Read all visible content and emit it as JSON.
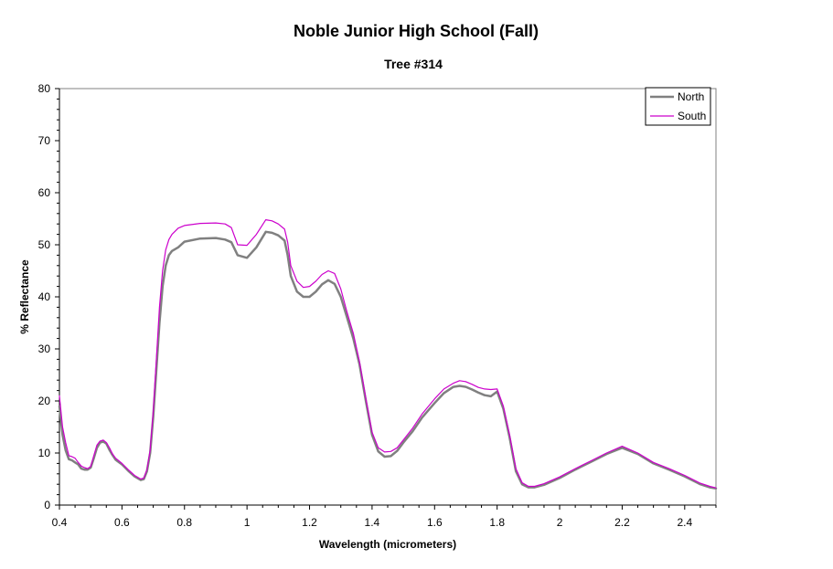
{
  "chart_data": {
    "type": "line",
    "title": "Noble Junior High School (Fall)",
    "subtitle": "Tree #314",
    "xlabel": "Wavelength (micrometers)",
    "ylabel": "% Reflectance",
    "xlim": [
      0.4,
      2.5
    ],
    "ylim": [
      0,
      80
    ],
    "x_ticks": [
      0.4,
      0.6,
      0.8,
      1,
      1.2,
      1.4,
      1.6,
      1.8,
      2,
      2.2,
      2.4
    ],
    "x_tick_labels": [
      "0.4",
      "0.6",
      "0.8",
      "1",
      "1.2",
      "1.4",
      "1.6",
      "1.8",
      "2",
      "2.2",
      "2.4"
    ],
    "y_ticks": [
      0,
      10,
      20,
      30,
      40,
      50,
      60,
      70,
      80
    ],
    "y_tick_labels": [
      "0",
      "10",
      "20",
      "30",
      "40",
      "50",
      "60",
      "70",
      "80"
    ],
    "grid": false,
    "legend_position": "top-right",
    "colors": {
      "North": "#808080",
      "South": "#cc00cc"
    },
    "series": [
      {
        "name": "North",
        "x": [
          0.4,
          0.41,
          0.42,
          0.43,
          0.44,
          0.45,
          0.46,
          0.47,
          0.48,
          0.49,
          0.5,
          0.51,
          0.52,
          0.53,
          0.54,
          0.55,
          0.56,
          0.57,
          0.58,
          0.6,
          0.62,
          0.64,
          0.66,
          0.67,
          0.68,
          0.69,
          0.7,
          0.71,
          0.72,
          0.73,
          0.74,
          0.75,
          0.76,
          0.78,
          0.8,
          0.85,
          0.9,
          0.93,
          0.95,
          0.97,
          1.0,
          1.03,
          1.06,
          1.08,
          1.1,
          1.12,
          1.13,
          1.14,
          1.16,
          1.18,
          1.2,
          1.22,
          1.24,
          1.26,
          1.28,
          1.3,
          1.32,
          1.34,
          1.36,
          1.38,
          1.4,
          1.42,
          1.44,
          1.46,
          1.48,
          1.5,
          1.53,
          1.56,
          1.6,
          1.63,
          1.66,
          1.68,
          1.7,
          1.72,
          1.74,
          1.76,
          1.78,
          1.8,
          1.82,
          1.84,
          1.86,
          1.88,
          1.9,
          1.92,
          1.95,
          2.0,
          2.05,
          2.1,
          2.15,
          2.2,
          2.25,
          2.3,
          2.35,
          2.4,
          2.45,
          2.48,
          2.5
        ],
        "y": [
          19,
          13.5,
          10.5,
          8.8,
          8.6,
          8.2,
          7.8,
          7,
          6.8,
          6.8,
          7.2,
          9,
          11,
          12,
          12.2,
          11.8,
          10.6,
          9.6,
          8.7,
          7.8,
          6.6,
          5.5,
          4.8,
          5,
          6.5,
          10,
          17,
          26,
          35,
          42,
          46,
          48,
          48.8,
          49.5,
          50.6,
          51.2,
          51.3,
          51,
          50.5,
          48,
          47.5,
          49.5,
          52.5,
          52.3,
          51.8,
          50.8,
          48,
          44,
          41,
          40,
          40,
          41,
          42.4,
          43.2,
          42.5,
          40,
          36,
          32,
          27,
          20,
          13.5,
          10.3,
          9.3,
          9.4,
          10.4,
          12,
          14.2,
          16.8,
          19.6,
          21.5,
          22.7,
          22.9,
          22.7,
          22.2,
          21.6,
          21.1,
          20.9,
          21.8,
          18.5,
          13,
          6.5,
          4,
          3.4,
          3.4,
          3.9,
          5.2,
          6.8,
          8.3,
          9.8,
          11,
          9.8,
          8,
          6.8,
          5.5,
          4,
          3.4,
          3.2
        ]
      },
      {
        "name": "South",
        "x": [
          0.4,
          0.41,
          0.42,
          0.43,
          0.44,
          0.45,
          0.46,
          0.47,
          0.48,
          0.49,
          0.5,
          0.51,
          0.52,
          0.53,
          0.54,
          0.55,
          0.56,
          0.57,
          0.58,
          0.6,
          0.62,
          0.64,
          0.66,
          0.67,
          0.68,
          0.69,
          0.7,
          0.71,
          0.72,
          0.73,
          0.74,
          0.75,
          0.76,
          0.78,
          0.8,
          0.85,
          0.9,
          0.93,
          0.95,
          0.97,
          1.0,
          1.03,
          1.06,
          1.08,
          1.1,
          1.12,
          1.13,
          1.14,
          1.16,
          1.18,
          1.2,
          1.22,
          1.24,
          1.26,
          1.28,
          1.3,
          1.32,
          1.34,
          1.36,
          1.38,
          1.4,
          1.42,
          1.44,
          1.46,
          1.48,
          1.5,
          1.53,
          1.56,
          1.6,
          1.63,
          1.66,
          1.68,
          1.7,
          1.72,
          1.74,
          1.76,
          1.78,
          1.8,
          1.82,
          1.84,
          1.86,
          1.88,
          1.9,
          1.92,
          1.95,
          2.0,
          2.05,
          2.1,
          2.15,
          2.2,
          2.25,
          2.3,
          2.35,
          2.4,
          2.45,
          2.48,
          2.5
        ],
        "y": [
          21,
          15,
          12,
          9.5,
          9.3,
          9,
          8.2,
          7.5,
          7.2,
          7,
          7.4,
          9.5,
          11.5,
          12.3,
          12.5,
          12,
          11,
          9.8,
          9,
          8,
          6.8,
          5.7,
          5,
          5.2,
          6.8,
          10.5,
          18,
          28,
          38,
          45,
          49,
          51,
          52,
          53.2,
          53.7,
          54.1,
          54.2,
          54,
          53.3,
          50,
          49.9,
          52,
          54.8,
          54.6,
          54,
          53,
          50.5,
          46,
          43,
          41.8,
          42,
          43,
          44.3,
          45,
          44.5,
          41.5,
          37,
          33,
          27.5,
          20.5,
          14,
          11,
          10.2,
          10.3,
          11,
          12.5,
          14.8,
          17.5,
          20.4,
          22.3,
          23.4,
          23.9,
          23.7,
          23.2,
          22.6,
          22.3,
          22.2,
          22.3,
          19,
          13.5,
          7,
          4.3,
          3.6,
          3.6,
          4.1,
          5.4,
          7,
          8.5,
          10,
          11.3,
          10,
          8.2,
          7,
          5.7,
          4.2,
          3.6,
          3.3
        ]
      }
    ]
  }
}
